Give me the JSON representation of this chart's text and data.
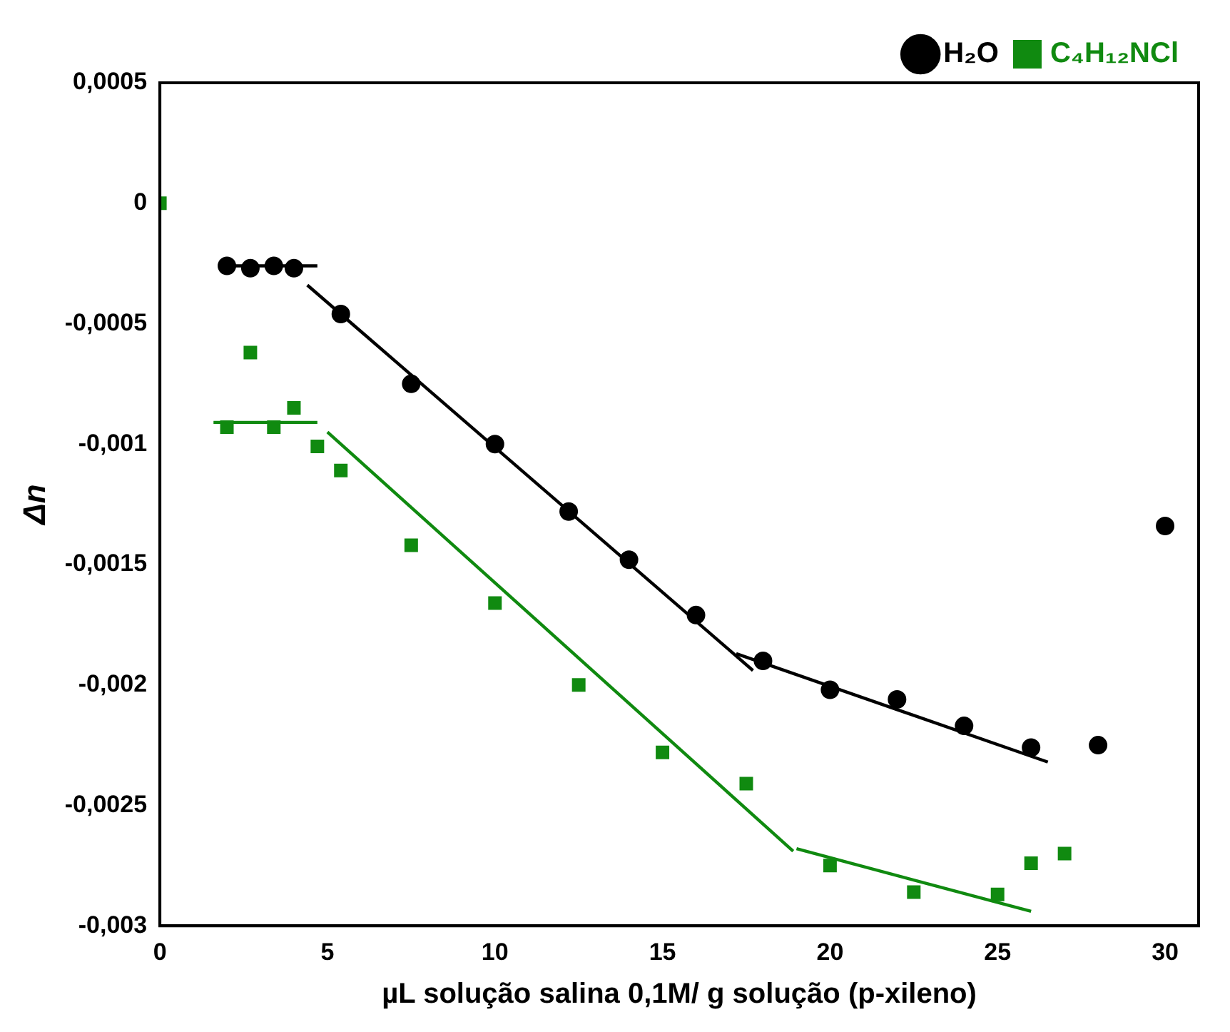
{
  "chart_data": {
    "type": "scatter",
    "xlabel": "µL solução salina 0,1M/ g solução (p-xileno)",
    "ylabel": "Δn",
    "xlim": [
      0,
      31
    ],
    "ylim": [
      -0.003,
      0.0005
    ],
    "xticks": [
      0,
      5,
      10,
      15,
      20,
      25,
      30
    ],
    "yticks": [
      {
        "value": 0.0005,
        "label": "0,0005"
      },
      {
        "value": 0,
        "label": "0"
      },
      {
        "value": -0.0005,
        "label": "-0,0005"
      },
      {
        "value": -0.001,
        "label": "-0,001"
      },
      {
        "value": -0.0015,
        "label": "-0,0015"
      },
      {
        "value": -0.002,
        "label": "-0,002"
      },
      {
        "value": -0.0025,
        "label": "-0,0025"
      },
      {
        "value": -0.003,
        "label": "-0,003"
      }
    ],
    "grid": false,
    "legend": "top right",
    "series": [
      {
        "name": "H₂O",
        "color": "#000000",
        "marker": "circle",
        "x": [
          2,
          2.7,
          3.4,
          4,
          5.4,
          7.5,
          10,
          12.2,
          14,
          16,
          18,
          20,
          22,
          24,
          26,
          28,
          30
        ],
        "values": [
          -0.00026,
          -0.00027,
          -0.00026,
          -0.00027,
          -0.00046,
          -0.00075,
          -0.001,
          -0.00128,
          -0.00148,
          -0.00171,
          -0.0019,
          -0.00202,
          -0.00206,
          -0.00217,
          -0.00226,
          -0.00225,
          -0.00134
        ]
      },
      {
        "name": "C₄H₁₂NCl",
        "color": "#108a10",
        "marker": "square",
        "x": [
          0,
          2,
          2.7,
          3.4,
          4,
          4.7,
          5.4,
          7.5,
          10,
          12.5,
          15,
          17.5,
          20,
          22.5,
          25,
          26,
          27
        ],
        "values": [
          0,
          -0.00093,
          -0.00062,
          -0.00093,
          -0.00085,
          -0.00101,
          -0.00111,
          -0.00142,
          -0.00166,
          -0.002,
          -0.00228,
          -0.00241,
          -0.00275,
          -0.00286,
          -0.00287,
          -0.00274,
          -0.0027
        ]
      },
      {
        "type": "line",
        "color": "#000000",
        "marker": "none",
        "x": [
          1.8,
          4.7
        ],
        "values": [
          -0.00026,
          -0.00026
        ]
      },
      {
        "type": "line",
        "color": "#000000",
        "marker": "none",
        "x": [
          4.4,
          17.7
        ],
        "values": [
          -0.00034,
          -0.00194
        ]
      },
      {
        "type": "line",
        "color": "#000000",
        "marker": "none",
        "x": [
          17.2,
          26.5
        ],
        "values": [
          -0.00187,
          -0.00232
        ]
      },
      {
        "type": "line",
        "color": "#108a10",
        "marker": "none",
        "x": [
          1.6,
          4.7
        ],
        "values": [
          -0.00091,
          -0.00091
        ]
      },
      {
        "type": "line",
        "color": "#108a10",
        "marker": "none",
        "x": [
          5,
          18.9
        ],
        "values": [
          -0.00095,
          -0.00269
        ]
      },
      {
        "type": "line",
        "color": "#108a10",
        "marker": "none",
        "x": [
          19,
          26
        ],
        "values": [
          -0.00268,
          -0.00294
        ]
      }
    ]
  }
}
